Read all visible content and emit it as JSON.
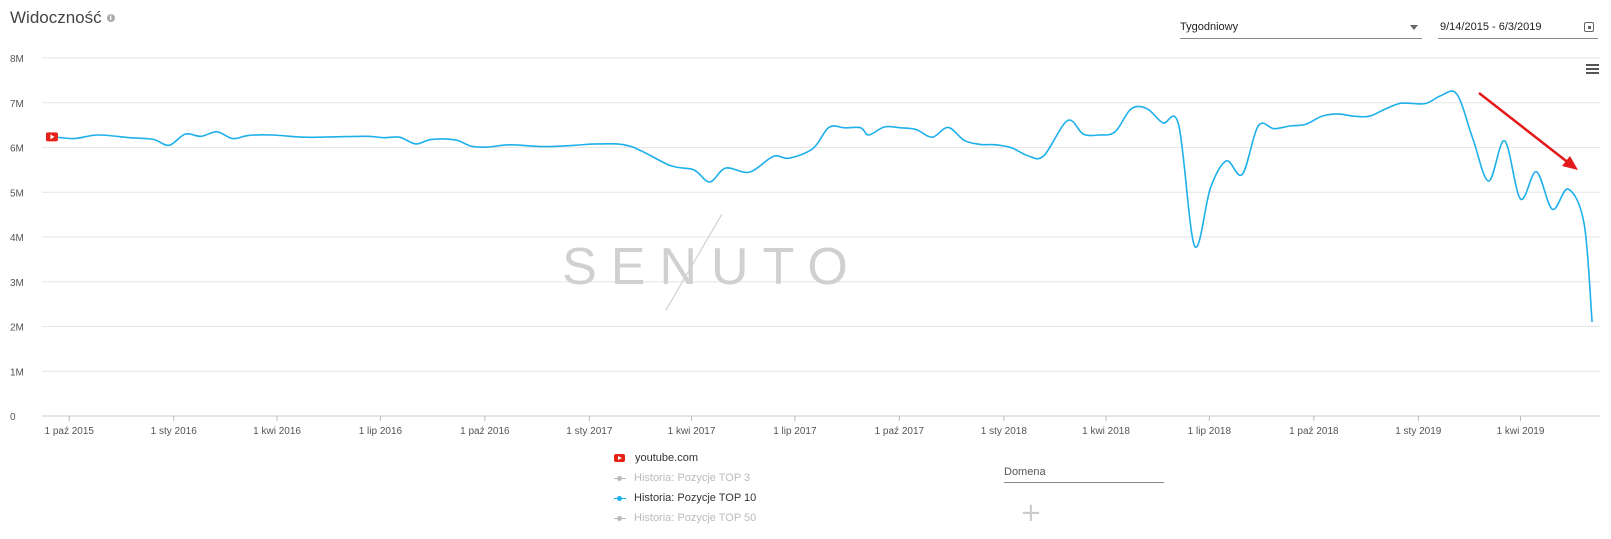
{
  "header": {
    "title": "Widoczność",
    "info_icon": "info-icon"
  },
  "controls": {
    "interval_select": "Tygodniowy",
    "date_range": "9/14/2015 - 6/3/2019",
    "calendar_icon": "calendar-icon",
    "menu_icon": "hamburger-menu-icon"
  },
  "chart_data": {
    "type": "line",
    "title": "",
    "xlabel": "",
    "ylabel": "",
    "ylim": [
      0,
      8000000
    ],
    "y_ticks": [
      "0",
      "1M",
      "2M",
      "3M",
      "4M",
      "5M",
      "6M",
      "7M",
      "8M"
    ],
    "x_ticks": [
      "1 paź 2015",
      "1 sty 2016",
      "1 kwi 2016",
      "1 lip 2016",
      "1 paź 2016",
      "1 sty 2017",
      "1 kwi 2017",
      "1 lip 2017",
      "1 paź 2017",
      "1 sty 2018",
      "1 kwi 2018",
      "1 lip 2018",
      "1 paź 2018",
      "1 sty 2019",
      "1 kwi 2019"
    ],
    "x_tick_dates": [
      "2015-10-01",
      "2016-01-01",
      "2016-04-01",
      "2016-07-01",
      "2016-10-01",
      "2017-01-01",
      "2017-04-01",
      "2017-07-01",
      "2017-10-01",
      "2018-01-01",
      "2018-04-01",
      "2018-07-01",
      "2018-10-01",
      "2019-01-01",
      "2019-04-01"
    ],
    "grid": true,
    "series": [
      {
        "name": "Historia: Pozycje TOP 10",
        "color": "#1eb0ea",
        "x": [
          "2015-09-14",
          "2015-10-05",
          "2015-10-26",
          "2015-11-23",
          "2015-12-14",
          "2015-12-28",
          "2016-01-11",
          "2016-01-25",
          "2016-02-08",
          "2016-02-22",
          "2016-03-07",
          "2016-03-28",
          "2016-04-25",
          "2016-05-23",
          "2016-06-20",
          "2016-07-04",
          "2016-07-18",
          "2016-08-01",
          "2016-08-15",
          "2016-09-05",
          "2016-09-19",
          "2016-10-03",
          "2016-10-24",
          "2016-11-21",
          "2016-12-19",
          "2017-01-09",
          "2017-02-06",
          "2017-03-13",
          "2017-04-03",
          "2017-04-17",
          "2017-05-01",
          "2017-05-22",
          "2017-06-12",
          "2017-06-26",
          "2017-07-17",
          "2017-07-31",
          "2017-08-14",
          "2017-08-28",
          "2017-09-04",
          "2017-09-18",
          "2017-10-02",
          "2017-10-16",
          "2017-10-30",
          "2017-11-13",
          "2017-11-27",
          "2017-12-11",
          "2017-12-25",
          "2018-01-08",
          "2018-01-22",
          "2018-02-05",
          "2018-02-26",
          "2018-03-12",
          "2018-03-26",
          "2018-04-09",
          "2018-04-23",
          "2018-05-07",
          "2018-05-21",
          "2018-06-04",
          "2018-06-18",
          "2018-07-02",
          "2018-07-16",
          "2018-07-30",
          "2018-08-13",
          "2018-08-27",
          "2018-09-10",
          "2018-09-24",
          "2018-10-08",
          "2018-10-22",
          "2018-11-05",
          "2018-11-19",
          "2018-12-03",
          "2018-12-17",
          "2019-01-07",
          "2019-01-21",
          "2019-02-04",
          "2019-02-18",
          "2019-03-04",
          "2019-03-18",
          "2019-04-01",
          "2019-04-15",
          "2019-04-29",
          "2019-05-13",
          "2019-05-27",
          "2019-06-03"
        ],
        "values": [
          6250000,
          6200000,
          6280000,
          6220000,
          6180000,
          6050000,
          6300000,
          6250000,
          6350000,
          6200000,
          6270000,
          6280000,
          6230000,
          6240000,
          6250000,
          6220000,
          6230000,
          6080000,
          6180000,
          6170000,
          6030000,
          6010000,
          6060000,
          6020000,
          6050000,
          6080000,
          6030000,
          5600000,
          5500000,
          5230000,
          5540000,
          5450000,
          5800000,
          5760000,
          5980000,
          6450000,
          6440000,
          6440000,
          6280000,
          6460000,
          6440000,
          6400000,
          6230000,
          6450000,
          6160000,
          6070000,
          6060000,
          5990000,
          5820000,
          5810000,
          6600000,
          6300000,
          6280000,
          6350000,
          6860000,
          6870000,
          6550000,
          6500000,
          3800000,
          5100000,
          5700000,
          5400000,
          6480000,
          6420000,
          6480000,
          6520000,
          6700000,
          6750000,
          6700000,
          6700000,
          6860000,
          6990000,
          6980000,
          7160000,
          7190000,
          6200000,
          5250000,
          6150000,
          4850000,
          5460000,
          4620000,
          5070000,
          4300000,
          2100000
        ]
      }
    ]
  },
  "watermark": "SENUTO",
  "legend": {
    "domain_label": "youtube.com",
    "items": [
      {
        "label": "Historia: Pozycje TOP 3",
        "active": false,
        "color": "#bbbbbb"
      },
      {
        "label": "Historia: Pozycje TOP 10",
        "active": true,
        "color": "#1eb0ea"
      },
      {
        "label": "Historia: Pozycje TOP 50",
        "active": false,
        "color": "#bbbbbb"
      }
    ]
  },
  "domain_input": {
    "placeholder": "Domena"
  },
  "add_button": "+",
  "colors": {
    "series": "#1eb0ea",
    "arrow": "#e3191b",
    "youtube_red": "#e62117",
    "grid": "#e6e6e6"
  }
}
